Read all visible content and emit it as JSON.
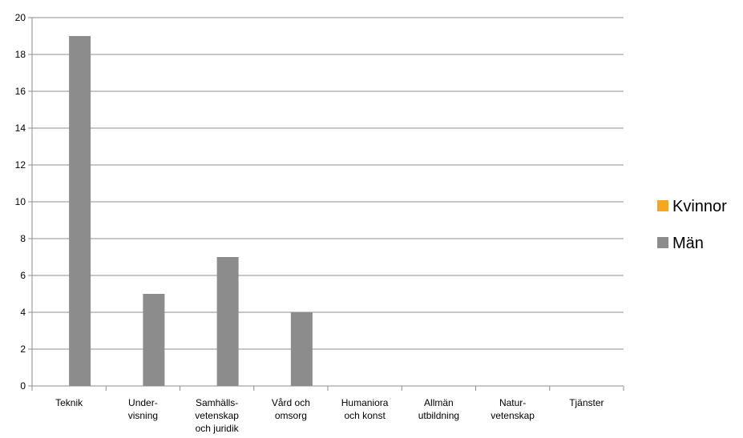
{
  "chart_data": {
    "type": "bar",
    "categories": [
      [
        "Teknik"
      ],
      [
        "Under-",
        "visning"
      ],
      [
        "Samhälls-",
        "vetenskap",
        "och juridik"
      ],
      [
        "Vård och",
        "omsorg"
      ],
      [
        "Humaniora",
        "och konst"
      ],
      [
        "Allmän",
        "utbildning"
      ],
      [
        "Natur-",
        "vetenskap"
      ],
      [
        "Tjänster"
      ]
    ],
    "series": [
      {
        "name": "Kvinnor",
        "color": "#F5A623",
        "values": [
          0,
          0,
          0,
          0,
          0,
          0,
          0,
          0
        ]
      },
      {
        "name": "Män",
        "color": "#8C8C8C",
        "values": [
          19,
          5,
          7,
          4,
          0,
          0,
          0,
          0
        ]
      }
    ],
    "ylim": [
      0,
      20
    ],
    "yticks": [
      "0",
      "2",
      "4",
      "6",
      "8",
      "10",
      "12",
      "14",
      "16",
      "18",
      "20"
    ],
    "grid": true,
    "legend_position": "right",
    "title": "",
    "xlabel": "",
    "ylabel": ""
  }
}
